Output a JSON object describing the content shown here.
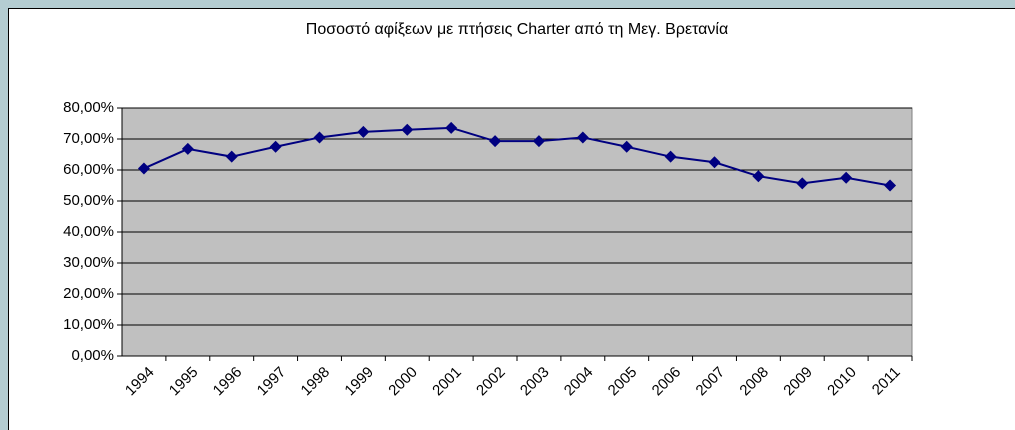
{
  "chart_data": {
    "type": "line",
    "title": "Ποσοστό αφίξεων με πτήσεις Charter από τη Μεγ. Βρετανία",
    "categories": [
      "1994",
      "1995",
      "1996",
      "1997",
      "1998",
      "1999",
      "2000",
      "2001",
      "2002",
      "2003",
      "2004",
      "2005",
      "2006",
      "2007",
      "2008",
      "2009",
      "2010",
      "2011"
    ],
    "series": [
      {
        "name": "Charter",
        "color": "#000080",
        "values": [
          60.5,
          66.8,
          64.3,
          67.5,
          70.5,
          72.3,
          73.0,
          73.6,
          69.3,
          69.3,
          70.5,
          67.5,
          64.3,
          62.5,
          58.0,
          55.7,
          57.5,
          55.0
        ]
      }
    ],
    "ylim": [
      0,
      80
    ],
    "yticks": [
      {
        "value": 0,
        "label": "0,00%"
      },
      {
        "value": 10,
        "label": "10,00%"
      },
      {
        "value": 20,
        "label": "20,00%"
      },
      {
        "value": 30,
        "label": "30,00%"
      },
      {
        "value": 40,
        "label": "40,00%"
      },
      {
        "value": 50,
        "label": "50,00%"
      },
      {
        "value": 60,
        "label": "60,00%"
      },
      {
        "value": 70,
        "label": "70,00%"
      },
      {
        "value": 80,
        "label": "80,00%"
      }
    ],
    "grid": true
  }
}
